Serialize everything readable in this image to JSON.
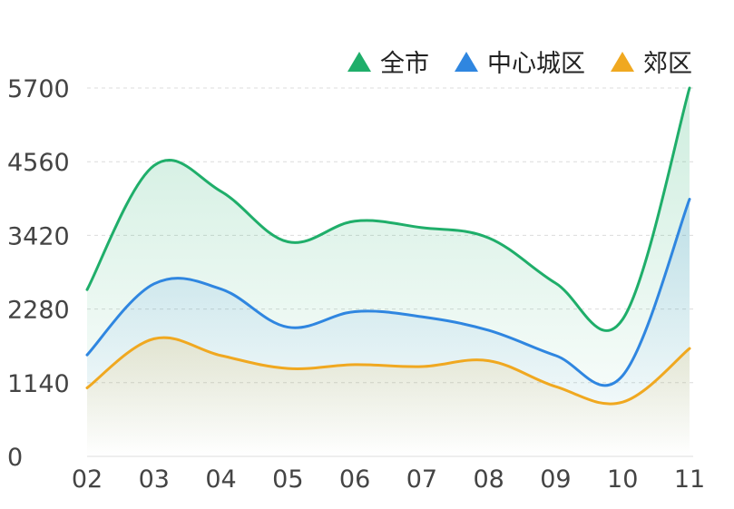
{
  "chart_data": {
    "type": "line",
    "categories": [
      "02",
      "03",
      "04",
      "05",
      "06",
      "07",
      "08",
      "09",
      "10",
      "11"
    ],
    "yticks": [
      "0",
      "1140",
      "2280",
      "3420",
      "4560",
      "5700"
    ],
    "ylim": [
      0,
      5700
    ],
    "grid": "dashed horizontal",
    "legend_position": "top-right",
    "series": [
      {
        "name": "全市",
        "color": "#1fae6a",
        "values": [
          2580,
          4500,
          4100,
          3320,
          3640,
          3540,
          3380,
          2680,
          2120,
          5700
        ]
      },
      {
        "name": "中心城区",
        "color": "#2f86e0",
        "values": [
          1570,
          2670,
          2590,
          2000,
          2240,
          2160,
          1950,
          1560,
          1250,
          3980
        ]
      },
      {
        "name": "郊区",
        "color": "#f0a820",
        "values": [
          1060,
          1820,
          1560,
          1360,
          1420,
          1390,
          1480,
          1080,
          840,
          1670
        ]
      }
    ]
  }
}
